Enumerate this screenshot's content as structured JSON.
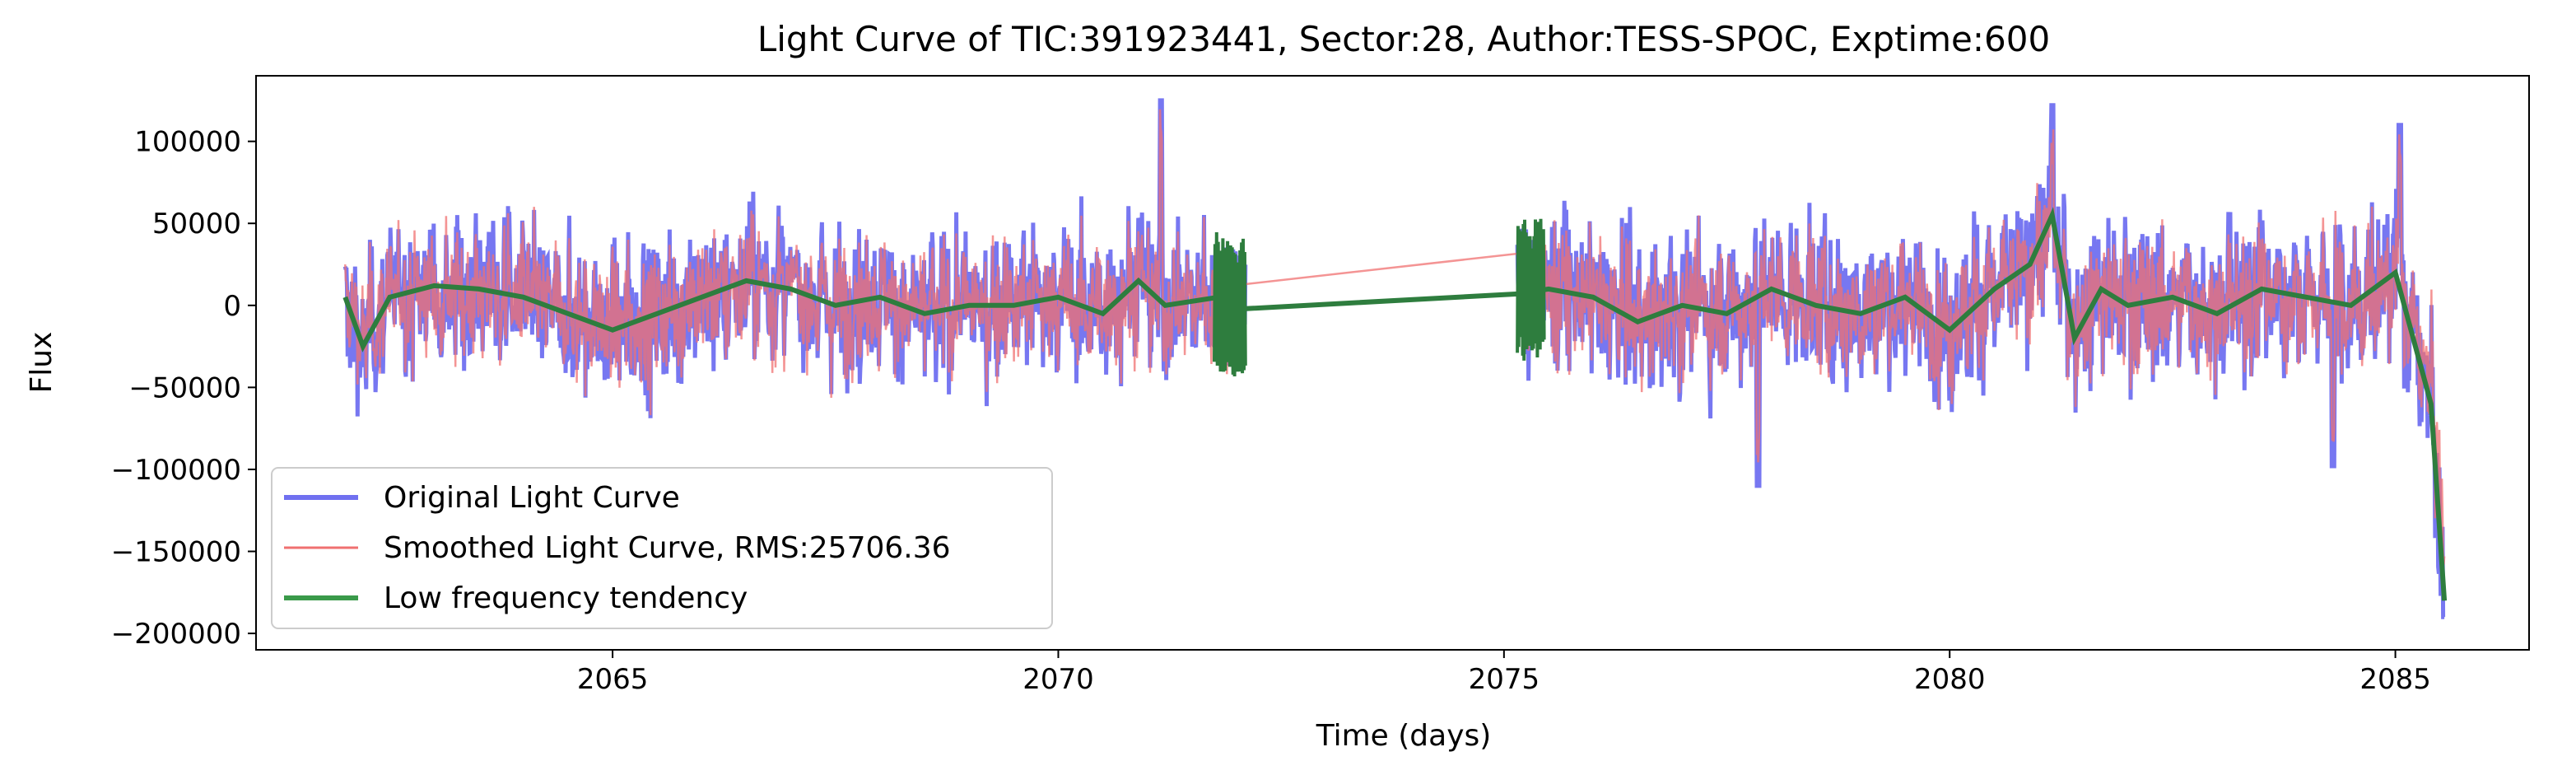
{
  "chart_data": {
    "type": "line",
    "title": "Light Curve of TIC:391923441, Sector:28, Author:TESS-SPOC, Exptime:600",
    "xlabel": "Time (days)",
    "ylabel": "Flux",
    "xlim": [
      2061,
      2086.5
    ],
    "ylim": [
      -210000,
      140000
    ],
    "xticks": [
      2065,
      2070,
      2075,
      2080,
      2085
    ],
    "yticks": [
      -200000,
      -150000,
      -100000,
      -50000,
      0,
      50000,
      100000
    ],
    "grid": false,
    "legend_position": "lower-left",
    "segments": [
      [
        2062.0,
        2072.1
      ],
      [
        2075.15,
        2085.55
      ]
    ],
    "series": [
      {
        "name": "Original Light Curve",
        "color": "#7070f0",
        "noise_amplitude": 40000,
        "max_excursions": [
          {
            "x": 2071.15,
            "y": 125000
          },
          {
            "x": 2081.15,
            "y": 122000
          },
          {
            "x": 2085.05,
            "y": 110000
          },
          {
            "x": 2077.85,
            "y": -110000
          },
          {
            "x": 2084.3,
            "y": -98000
          },
          {
            "x": 2085.55,
            "y": -190000
          }
        ]
      },
      {
        "name": "Smoothed Light Curve, RMS:25706.36",
        "color": "#f07070",
        "rms": 25706.36
      },
      {
        "name": "Low frequency tendency",
        "color": "#2e7d3e",
        "points": [
          {
            "x": 2062.0,
            "y": 5000
          },
          {
            "x": 2062.2,
            "y": -25000
          },
          {
            "x": 2062.5,
            "y": 5000
          },
          {
            "x": 2063.0,
            "y": 12000
          },
          {
            "x": 2063.5,
            "y": 10000
          },
          {
            "x": 2064.0,
            "y": 5000
          },
          {
            "x": 2064.5,
            "y": -5000
          },
          {
            "x": 2065.0,
            "y": -15000
          },
          {
            "x": 2065.5,
            "y": -5000
          },
          {
            "x": 2066.0,
            "y": 5000
          },
          {
            "x": 2066.5,
            "y": 15000
          },
          {
            "x": 2067.0,
            "y": 10000
          },
          {
            "x": 2067.5,
            "y": 0
          },
          {
            "x": 2068.0,
            "y": 5000
          },
          {
            "x": 2068.5,
            "y": -5000
          },
          {
            "x": 2069.0,
            "y": 0
          },
          {
            "x": 2069.5,
            "y": 0
          },
          {
            "x": 2070.0,
            "y": 5000
          },
          {
            "x": 2070.5,
            "y": -5000
          },
          {
            "x": 2070.9,
            "y": 15000
          },
          {
            "x": 2071.2,
            "y": 0
          },
          {
            "x": 2071.8,
            "y": 5000
          },
          {
            "x": 2072.1,
            "y": -2000
          },
          {
            "x": 2075.15,
            "y": 7000
          },
          {
            "x": 2075.5,
            "y": 10000
          },
          {
            "x": 2076.0,
            "y": 5000
          },
          {
            "x": 2076.5,
            "y": -10000
          },
          {
            "x": 2077.0,
            "y": 0
          },
          {
            "x": 2077.5,
            "y": -5000
          },
          {
            "x": 2078.0,
            "y": 10000
          },
          {
            "x": 2078.5,
            "y": 0
          },
          {
            "x": 2079.0,
            "y": -5000
          },
          {
            "x": 2079.5,
            "y": 5000
          },
          {
            "x": 2080.0,
            "y": -15000
          },
          {
            "x": 2080.5,
            "y": 10000
          },
          {
            "x": 2080.9,
            "y": 25000
          },
          {
            "x": 2081.15,
            "y": 55000
          },
          {
            "x": 2081.4,
            "y": -20000
          },
          {
            "x": 2081.7,
            "y": 10000
          },
          {
            "x": 2082.0,
            "y": 0
          },
          {
            "x": 2082.5,
            "y": 5000
          },
          {
            "x": 2083.0,
            "y": -5000
          },
          {
            "x": 2083.5,
            "y": 10000
          },
          {
            "x": 2084.0,
            "y": 5000
          },
          {
            "x": 2084.5,
            "y": 0
          },
          {
            "x": 2085.0,
            "y": 20000
          },
          {
            "x": 2085.2,
            "y": -20000
          },
          {
            "x": 2085.4,
            "y": -60000
          },
          {
            "x": 2085.55,
            "y": -180000
          }
        ]
      }
    ],
    "legend": [
      {
        "label": "Original Light Curve"
      },
      {
        "label": "Smoothed Light Curve, RMS:25706.36"
      },
      {
        "label": "Low frequency tendency"
      }
    ]
  }
}
